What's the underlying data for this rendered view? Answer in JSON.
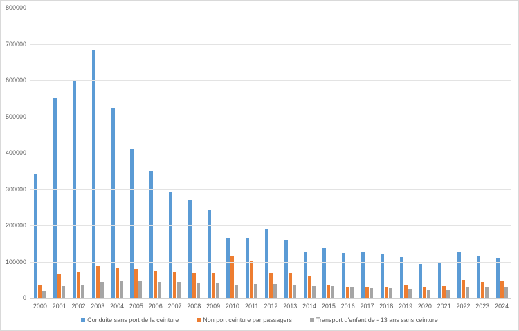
{
  "chart_data": {
    "type": "bar",
    "title": "",
    "xlabel": "",
    "ylabel": "",
    "ylim": [
      0,
      800000
    ],
    "yticks": [
      "0",
      "100000",
      "200000",
      "300000",
      "400000",
      "500000",
      "600000",
      "700000",
      "800000"
    ],
    "grid": true,
    "legend_position": "bottom",
    "categories": [
      "2000",
      "2001",
      "2002",
      "2003",
      "2004",
      "2005",
      "2006",
      "2007",
      "2008",
      "2009",
      "2010",
      "2011",
      "2012",
      "2013",
      "2014",
      "2015",
      "2016",
      "2017",
      "2018",
      "2019",
      "2020",
      "2021",
      "2022",
      "2023",
      "2024"
    ],
    "series": [
      {
        "name": "Conduite sans port de la ceinture",
        "color": "#5b9bd5",
        "values": [
          341000,
          551000,
          600000,
          682000,
          524000,
          411000,
          348000,
          292000,
          269000,
          242000,
          164000,
          166000,
          190000,
          160000,
          128000,
          137000,
          123000,
          125000,
          122000,
          113000,
          94000,
          96000,
          126000,
          115000,
          111000
        ]
      },
      {
        "name": "Non port ceinture par passagers",
        "color": "#ed7d31",
        "values": [
          36000,
          65000,
          70000,
          87000,
          81000,
          79000,
          75000,
          70000,
          69000,
          68000,
          117000,
          103000,
          69000,
          69000,
          60000,
          35000,
          30000,
          30000,
          30000,
          34000,
          28000,
          33000,
          50000,
          44000,
          46000
        ]
      },
      {
        "name": "Transport d'enfant de - 13 ans sans ceinture",
        "color": "#a5a5a5",
        "values": [
          19000,
          32000,
          36000,
          44000,
          47000,
          45000,
          44000,
          44000,
          42000,
          40000,
          36000,
          39000,
          39000,
          36000,
          33000,
          32000,
          29000,
          27000,
          27000,
          25000,
          21000,
          23000,
          29000,
          29000,
          30000
        ]
      }
    ]
  }
}
